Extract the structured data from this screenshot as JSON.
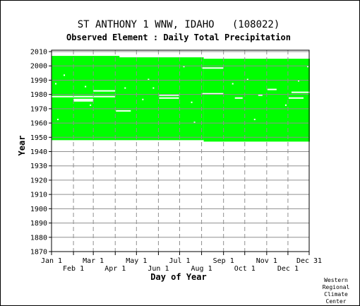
{
  "chart_data": {
    "type": "heatmap",
    "title": "ST ANTHONY 1 WNW, IDAHO   (108022)",
    "subtitle": "Observed Element : Daily Total Precipitation",
    "xlabel": "Day of Year",
    "ylabel": "Year",
    "x_ticks": [
      {
        "label": "Jan 1",
        "day": 1
      },
      {
        "label": "Feb 1",
        "day": 32
      },
      {
        "label": "Mar 1",
        "day": 60
      },
      {
        "label": "Apr 1",
        "day": 91
      },
      {
        "label": "May 1",
        "day": 121
      },
      {
        "label": "Jun 1",
        "day": 152
      },
      {
        "label": "Jul 1",
        "day": 182
      },
      {
        "label": "Aug 1",
        "day": 213
      },
      {
        "label": "Sep 1",
        "day": 244
      },
      {
        "label": "Oct 1",
        "day": 274
      },
      {
        "label": "Nov 1",
        "day": 305
      },
      {
        "label": "Dec 1",
        "day": 335
      },
      {
        "label": "Dec 31",
        "day": 365
      }
    ],
    "y_ticks": [
      2010,
      2000,
      1990,
      1980,
      1970,
      1960,
      1950,
      1940,
      1930,
      1920,
      1910,
      1900,
      1890,
      1880,
      1870
    ],
    "xlim": [
      1,
      365
    ],
    "ylim": [
      1870,
      2011
    ],
    "grid": true,
    "data_color": "#00ff00",
    "coverage": [
      {
        "year_start": 1948,
        "year_end": 2005,
        "day_start": 1,
        "day_end": 215
      },
      {
        "year_start": 1947,
        "year_end": 2004,
        "day_start": 216,
        "day_end": 365
      },
      {
        "year_start": 2005,
        "year_end": 2006,
        "day_start": 1,
        "day_end": 96
      }
    ],
    "gaps": [
      {
        "year": 1978,
        "day_start": 1,
        "day_end": 32
      },
      {
        "year": 1978,
        "day_start": 32,
        "day_end": 59
      },
      {
        "year": 1976,
        "day_start": 32,
        "day_end": 59
      },
      {
        "year": 1975,
        "day_start": 32,
        "day_end": 59
      },
      {
        "year": 1982,
        "day_start": 60,
        "day_end": 90
      },
      {
        "year": 1978,
        "day_start": 60,
        "day_end": 90
      },
      {
        "year": 1968,
        "day_start": 92,
        "day_end": 112
      },
      {
        "year": 1979,
        "day_start": 153,
        "day_end": 180
      },
      {
        "year": 1977,
        "day_start": 153,
        "day_end": 180
      },
      {
        "year": 1998,
        "day_start": 214,
        "day_end": 243
      },
      {
        "year": 1980,
        "day_start": 214,
        "day_end": 243
      },
      {
        "year": 1977,
        "day_start": 260,
        "day_end": 270
      },
      {
        "year": 1979,
        "day_start": 293,
        "day_end": 298
      },
      {
        "year": 1983,
        "day_start": 306,
        "day_end": 318
      },
      {
        "year": 1977,
        "day_start": 336,
        "day_end": 356
      },
      {
        "year": 1981,
        "day_start": 340,
        "day_end": 365
      },
      {
        "year": 1987,
        "day_start": 6,
        "day_end": 7
      },
      {
        "year": 1993,
        "day_start": 18,
        "day_end": 19
      },
      {
        "year": 1962,
        "day_start": 9,
        "day_end": 10
      },
      {
        "year": 1985,
        "day_start": 48,
        "day_end": 49
      },
      {
        "year": 1972,
        "day_start": 55,
        "day_end": 56
      },
      {
        "year": 1984,
        "day_start": 104,
        "day_end": 105
      },
      {
        "year": 1990,
        "day_start": 137,
        "day_end": 138
      },
      {
        "year": 1976,
        "day_start": 129,
        "day_end": 130
      },
      {
        "year": 1984,
        "day_start": 144,
        "day_end": 145
      },
      {
        "year": 1999,
        "day_start": 187,
        "day_end": 188
      },
      {
        "year": 1974,
        "day_start": 198,
        "day_end": 199
      },
      {
        "year": 1960,
        "day_start": 202,
        "day_end": 203
      },
      {
        "year": 1987,
        "day_start": 256,
        "day_end": 257
      },
      {
        "year": 1990,
        "day_start": 277,
        "day_end": 278
      },
      {
        "year": 1962,
        "day_start": 287,
        "day_end": 288
      },
      {
        "year": 1989,
        "day_start": 349,
        "day_end": 350
      },
      {
        "year": 1999,
        "day_start": 362,
        "day_end": 363
      },
      {
        "year": 1972,
        "day_start": 331,
        "day_end": 332
      }
    ]
  },
  "credit": [
    "Western",
    "Regional",
    "Climate",
    "Center"
  ]
}
